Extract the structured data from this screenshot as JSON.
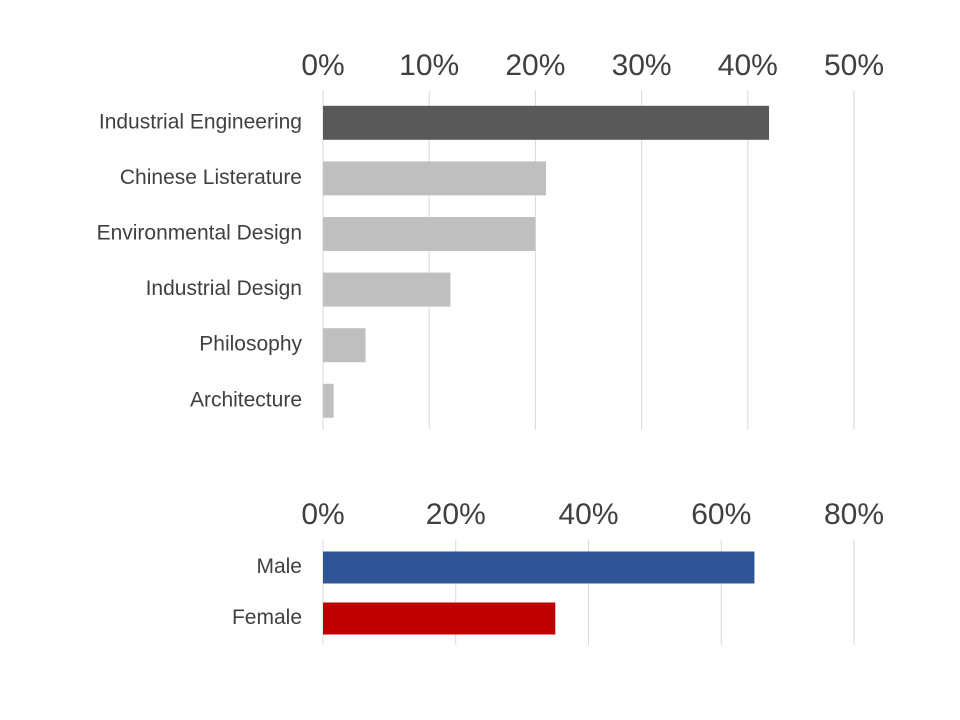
{
  "chart_data": [
    {
      "type": "bar",
      "orientation": "horizontal",
      "categories": [
        "Industrial Engineering",
        "Chinese Listerature",
        "Environmental Design",
        "Industrial Design",
        "Philosophy",
        "Architecture"
      ],
      "values": [
        42,
        21,
        20,
        12,
        4,
        1
      ],
      "value_unit": "%",
      "xlim": [
        0,
        50
      ],
      "ticks": [
        "0%",
        "10%",
        "20%",
        "30%",
        "40%",
        "50%"
      ],
      "tick_values": [
        0,
        10,
        20,
        30,
        40,
        50
      ],
      "axis_position": "top",
      "grid": true,
      "colors": [
        "#595959",
        "#bfbfbf",
        "#bfbfbf",
        "#bfbfbf",
        "#bfbfbf",
        "#bfbfbf"
      ]
    },
    {
      "type": "bar",
      "orientation": "horizontal",
      "categories": [
        "Male",
        "Female"
      ],
      "values": [
        65,
        35
      ],
      "value_unit": "%",
      "xlim": [
        0,
        80
      ],
      "ticks": [
        "0%",
        "20%",
        "40%",
        "60%",
        "80%"
      ],
      "tick_values": [
        0,
        20,
        40,
        60,
        80
      ],
      "axis_position": "top",
      "grid": true,
      "colors": [
        "#2f5597",
        "#c00000"
      ]
    }
  ]
}
